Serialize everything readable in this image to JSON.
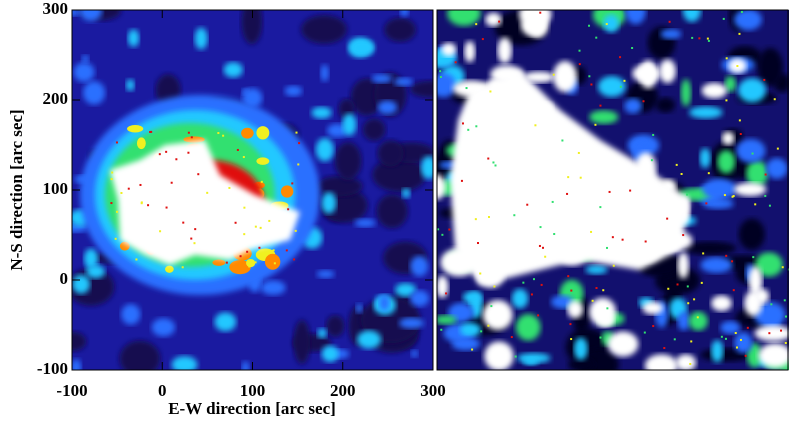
{
  "chart_data": {
    "type": "image",
    "xlabel": "E-W direction [arc sec]",
    "ylabel": "N-S direction [arc sec]",
    "xlim": [
      -100,
      300
    ],
    "ylim": [
      -100,
      300
    ],
    "xticks": [
      -100,
      0,
      100,
      200,
      300
    ],
    "yticks": [
      -100,
      0,
      100,
      200,
      300
    ]
  }
}
